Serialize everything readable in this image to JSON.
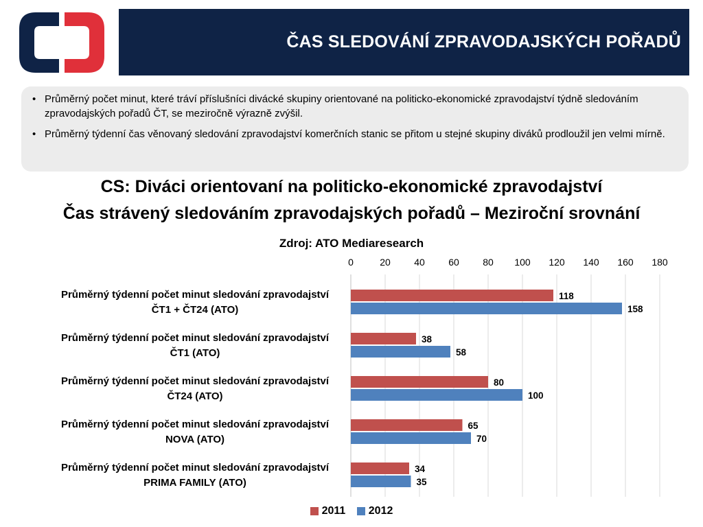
{
  "header": {
    "title": "ČAS SLEDOVÁNÍ ZPRAVODAJSKÝCH POŘADŮ"
  },
  "bullets": [
    "Průměrný počet minut, které tráví příslušníci divácké skupiny orientované na politicko-ekonomické zpravodajství týdně sledováním zpravodajských pořadů ČT, se meziročně výrazně zvýšil.",
    "Průměrný týdenní čas věnovaný sledování zpravodajství komerčních stanic se přitom u stejné skupiny diváků prodloužil jen velmi mírně."
  ],
  "chart_title": {
    "line1": "CS: Diváci orientovaní na politicko-ekonomické zpravodajství",
    "line2": "Čas strávený sledováním zpravodajských pořadů – Meziroční srovnání",
    "source": "Zdroj: ATO Mediaresearch"
  },
  "chart_data": {
    "type": "bar",
    "orientation": "horizontal",
    "categories": [
      [
        "Průměrný týdenní počet minut sledování zpravodajství",
        "ČT1 + ČT24 (ATO)"
      ],
      [
        "Průměrný týdenní počet minut sledování zpravodajství",
        "ČT1 (ATO)"
      ],
      [
        "Průměrný týdenní počet minut sledování zpravodajství",
        "ČT24 (ATO)"
      ],
      [
        "Průměrný týdenní počet minut sledování zpravodajství",
        "NOVA (ATO)"
      ],
      [
        "Průměrný týdenní počet minut sledování zpravodajství",
        "PRIMA FAMILY (ATO)"
      ]
    ],
    "series": [
      {
        "name": "2011",
        "color": "#c0504d",
        "values": [
          118,
          38,
          80,
          65,
          34
        ]
      },
      {
        "name": "2012",
        "color": "#4f81bd",
        "values": [
          158,
          58,
          100,
          70,
          35
        ]
      }
    ],
    "xlim": [
      0,
      180
    ],
    "ticks": [
      0,
      20,
      40,
      60,
      80,
      100,
      120,
      140,
      160,
      180
    ],
    "axis_position": "top",
    "grid": true,
    "legend_position": "bottom"
  },
  "colors": {
    "header_bg": "#0f2346",
    "logo_blue": "#0f2346",
    "logo_red": "#e0303a",
    "box_bg": "#ececec"
  }
}
